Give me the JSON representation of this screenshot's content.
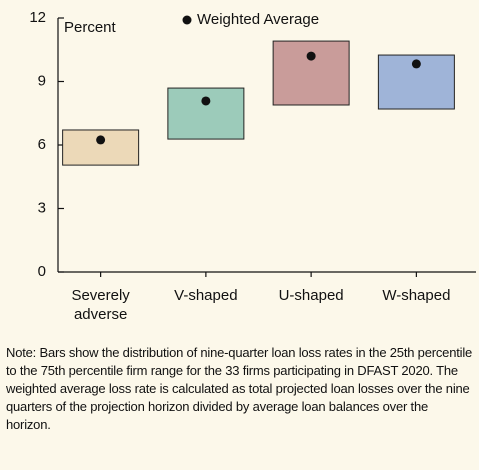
{
  "chart_data": {
    "type": "floating-bar",
    "y_label": "Percent",
    "categories": [
      "Severely adverse",
      "V-shaped",
      "U-shaped",
      "W-shaped"
    ],
    "lower": [
      5.05,
      6.28,
      7.89,
      7.7
    ],
    "upper": [
      6.71,
      8.69,
      10.91,
      10.25
    ],
    "colors": [
      "#ecd9b8",
      "#9ccbba",
      "#c99c9a",
      "#9fb4d8"
    ],
    "average": {
      "name": "Weighted Average",
      "color": "#111111",
      "values": [
        6.24,
        8.08,
        10.2,
        9.83
      ]
    },
    "ylim": [
      0,
      12
    ],
    "yticks": [
      0,
      3,
      6,
      9,
      12
    ],
    "note": "Note: Bars show the distribution of nine-quarter loan loss rates in the 25th percentile to the 75th percentile firm range for the 33 firms participating in DFAST 2020. The weighted average loss rate is calculated as total projected loan losses over the nine quarters of the projection horizon divided by average loan balances over the horizon."
  }
}
